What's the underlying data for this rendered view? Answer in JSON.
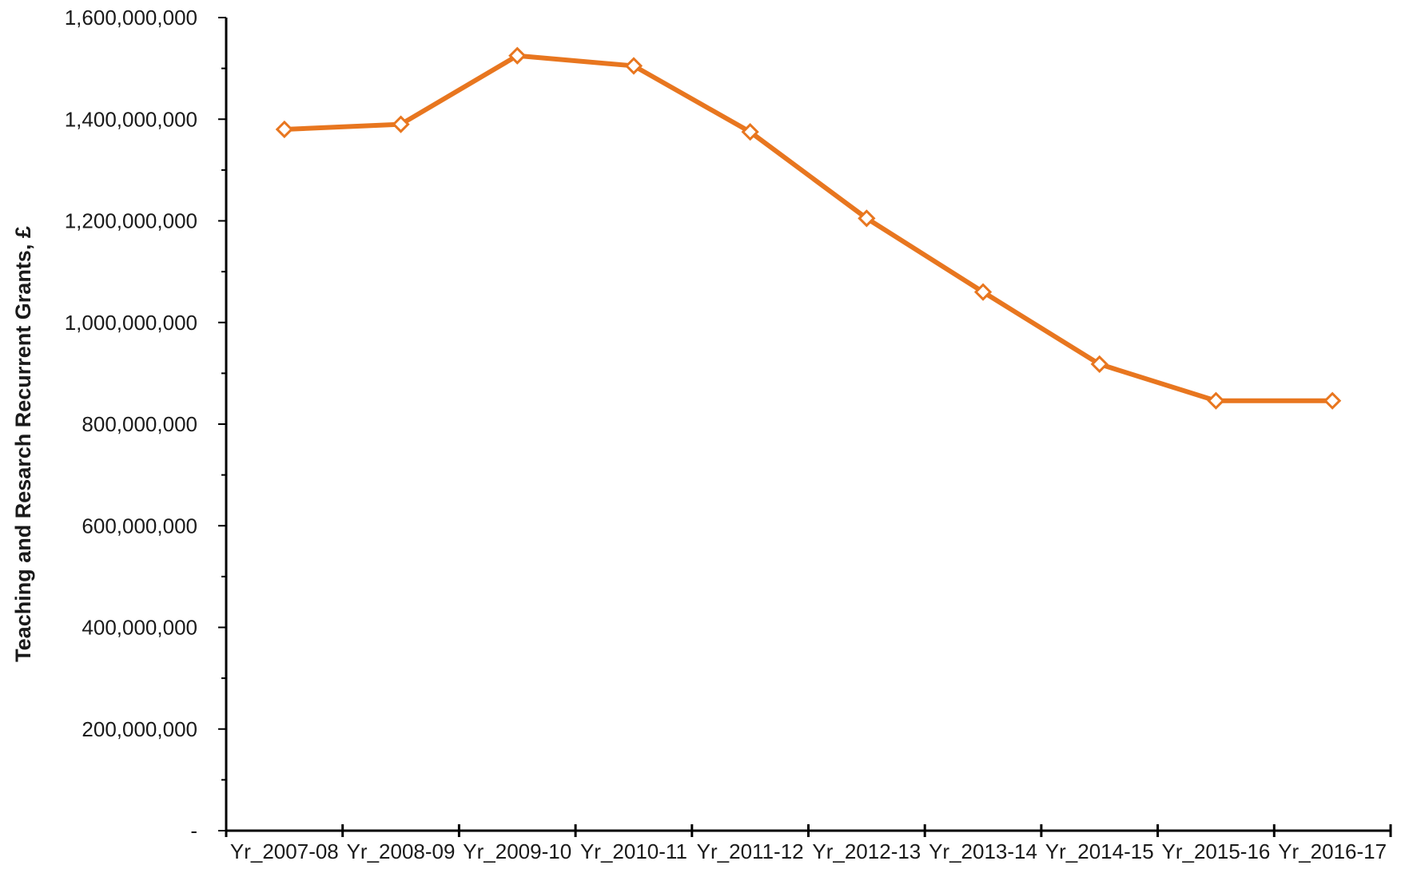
{
  "chart_data": {
    "type": "line",
    "title": "",
    "xlabel": "",
    "ylabel": "Teaching and Resarch Recurrent Grants, £",
    "categories": [
      "Yr_2007-08",
      "Yr_2008-09",
      "Yr_2009-10",
      "Yr_2010-11",
      "Yr_2011-12",
      "Yr_2012-13",
      "Yr_2013-14",
      "Yr_2014-15",
      "Yr_2015-16",
      "Yr_2016-17"
    ],
    "series": [
      {
        "values": [
          1380000000,
          1390000000,
          1525000000,
          1505000000,
          1375000000,
          1205000000,
          1060000000,
          918000000,
          846000000,
          846000000
        ],
        "color": "#E8761F",
        "marker": "diamond"
      }
    ],
    "ylim": [
      0,
      1600000000
    ],
    "yticks": [
      0,
      200000000,
      400000000,
      600000000,
      800000000,
      1000000000,
      1200000000,
      1400000000,
      1600000000
    ],
    "ytick_labels": [
      "-",
      "200,000,000",
      "400,000,000",
      "600,000,000",
      "800,000,000",
      "1,000,000,000",
      "1,200,000,000",
      "1,400,000,000",
      "1,600,000,000"
    ],
    "grid": false,
    "legend": "none"
  }
}
